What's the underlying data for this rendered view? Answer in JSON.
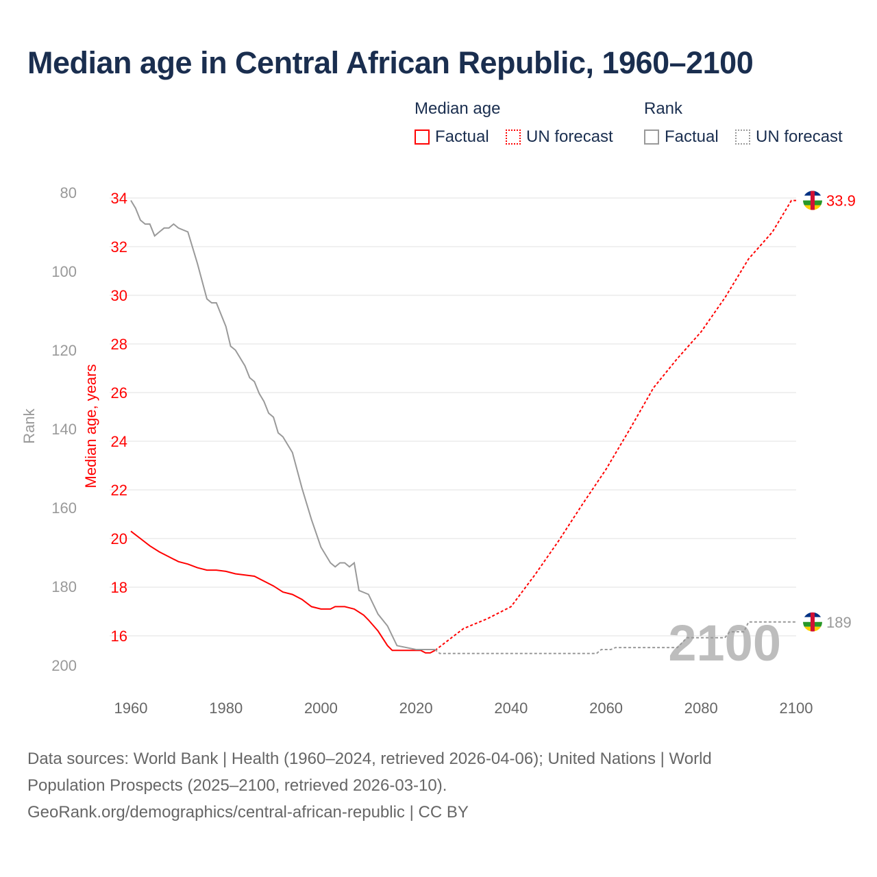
{
  "title": "Median age in Central African Republic, 1960–2100",
  "legend": {
    "median_heading": "Median age",
    "rank_heading": "Rank",
    "median_factual": "Factual",
    "median_forecast": "UN forecast",
    "rank_factual": "Factual",
    "rank_forecast": "UN forecast"
  },
  "footer": {
    "line1": "Data sources: World Bank | Health (1960–2024, retrieved 2026-04-06); United Nations | World",
    "line2": "Population Prospects (2025–2100, retrieved 2026-03-10).",
    "line3": "GeoRank.org/demographics/central-african-republic | CC BY"
  },
  "chart_data": {
    "type": "line",
    "title": "Median age in Central African Republic, 1960–2100",
    "xlabel": "",
    "ylabel": "Median age, years",
    "y2label": "Rank",
    "xlim": [
      1960,
      2100
    ],
    "ylim": [
      15,
      34
    ],
    "y2lim": [
      80,
      200
    ],
    "y2_inverted": true,
    "x_ticks": [
      1960,
      1980,
      2000,
      2020,
      2040,
      2060,
      2080,
      2100
    ],
    "y_ticks": [
      16,
      18,
      20,
      22,
      24,
      26,
      28,
      30,
      32,
      34
    ],
    "y2_ticks": [
      80,
      100,
      120,
      140,
      160,
      180,
      200
    ],
    "year_watermark": "2100",
    "end_labels": {
      "median": "33.9",
      "rank": "189"
    },
    "colors": {
      "median": "#ff0000",
      "rank": "#999999"
    },
    "series": [
      {
        "name": "Median age – Factual",
        "axis": "left",
        "style": "solid",
        "x": [
          1960,
          1962,
          1964,
          1966,
          1968,
          1970,
          1972,
          1974,
          1976,
          1978,
          1980,
          1982,
          1984,
          1986,
          1988,
          1990,
          1992,
          1994,
          1996,
          1998,
          2000,
          2002,
          2003,
          2005,
          2007,
          2009,
          2010,
          2012,
          2014,
          2015,
          2018,
          2021,
          2022,
          2023,
          2024
        ],
        "y": [
          20.3,
          20.0,
          19.7,
          19.45,
          19.25,
          19.05,
          18.95,
          18.8,
          18.7,
          18.7,
          18.65,
          18.55,
          18.5,
          18.45,
          18.25,
          18.05,
          17.8,
          17.7,
          17.5,
          17.2,
          17.1,
          17.1,
          17.2,
          17.2,
          17.1,
          16.85,
          16.65,
          16.2,
          15.6,
          15.4,
          15.4,
          15.4,
          15.3,
          15.3,
          15.4
        ]
      },
      {
        "name": "Median age – UN forecast",
        "axis": "left",
        "style": "dashed",
        "x": [
          2024,
          2030,
          2035,
          2040,
          2045,
          2050,
          2055,
          2060,
          2065,
          2070,
          2075,
          2080,
          2085,
          2090,
          2095,
          2099,
          2100
        ],
        "y": [
          15.4,
          16.3,
          16.7,
          17.2,
          18.5,
          19.9,
          21.4,
          22.85,
          24.5,
          26.2,
          27.4,
          28.5,
          29.9,
          31.5,
          32.6,
          33.9,
          33.9
        ]
      },
      {
        "name": "Rank – Factual",
        "axis": "right",
        "style": "solid",
        "x": [
          1960,
          1961,
          1962,
          1963,
          1964,
          1965,
          1966,
          1967,
          1968,
          1969,
          1970,
          1972,
          1974,
          1976,
          1977,
          1978,
          1980,
          1981,
          1982,
          1984,
          1985,
          1986,
          1987,
          1988,
          1989,
          1990,
          1991,
          1992,
          1994,
          1996,
          1998,
          2000,
          2002,
          2003,
          2004,
          2005,
          2006,
          2007,
          2008,
          2010,
          2012,
          2014,
          2016,
          2020,
          2024
        ],
        "y": [
          82,
          84,
          87,
          88,
          88,
          91,
          90,
          89,
          89,
          88,
          89,
          90,
          98,
          107,
          108,
          108,
          114,
          119,
          120,
          124,
          127,
          128,
          131,
          133,
          136,
          137,
          141,
          142,
          146,
          155,
          163,
          170,
          174,
          175,
          174,
          174,
          175,
          174,
          181,
          182,
          187,
          190,
          195,
          196,
          196
        ]
      },
      {
        "name": "Rank – UN forecast",
        "axis": "right",
        "style": "dashed",
        "x": [
          2024,
          2025,
          2058,
          2059,
          2061,
          2062,
          2075,
          2077,
          2085,
          2086,
          2089,
          2090,
          2100
        ],
        "y": [
          196,
          197,
          197,
          196,
          196,
          195.5,
          195.5,
          193,
          193,
          191.5,
          191.5,
          189,
          189
        ]
      }
    ]
  }
}
